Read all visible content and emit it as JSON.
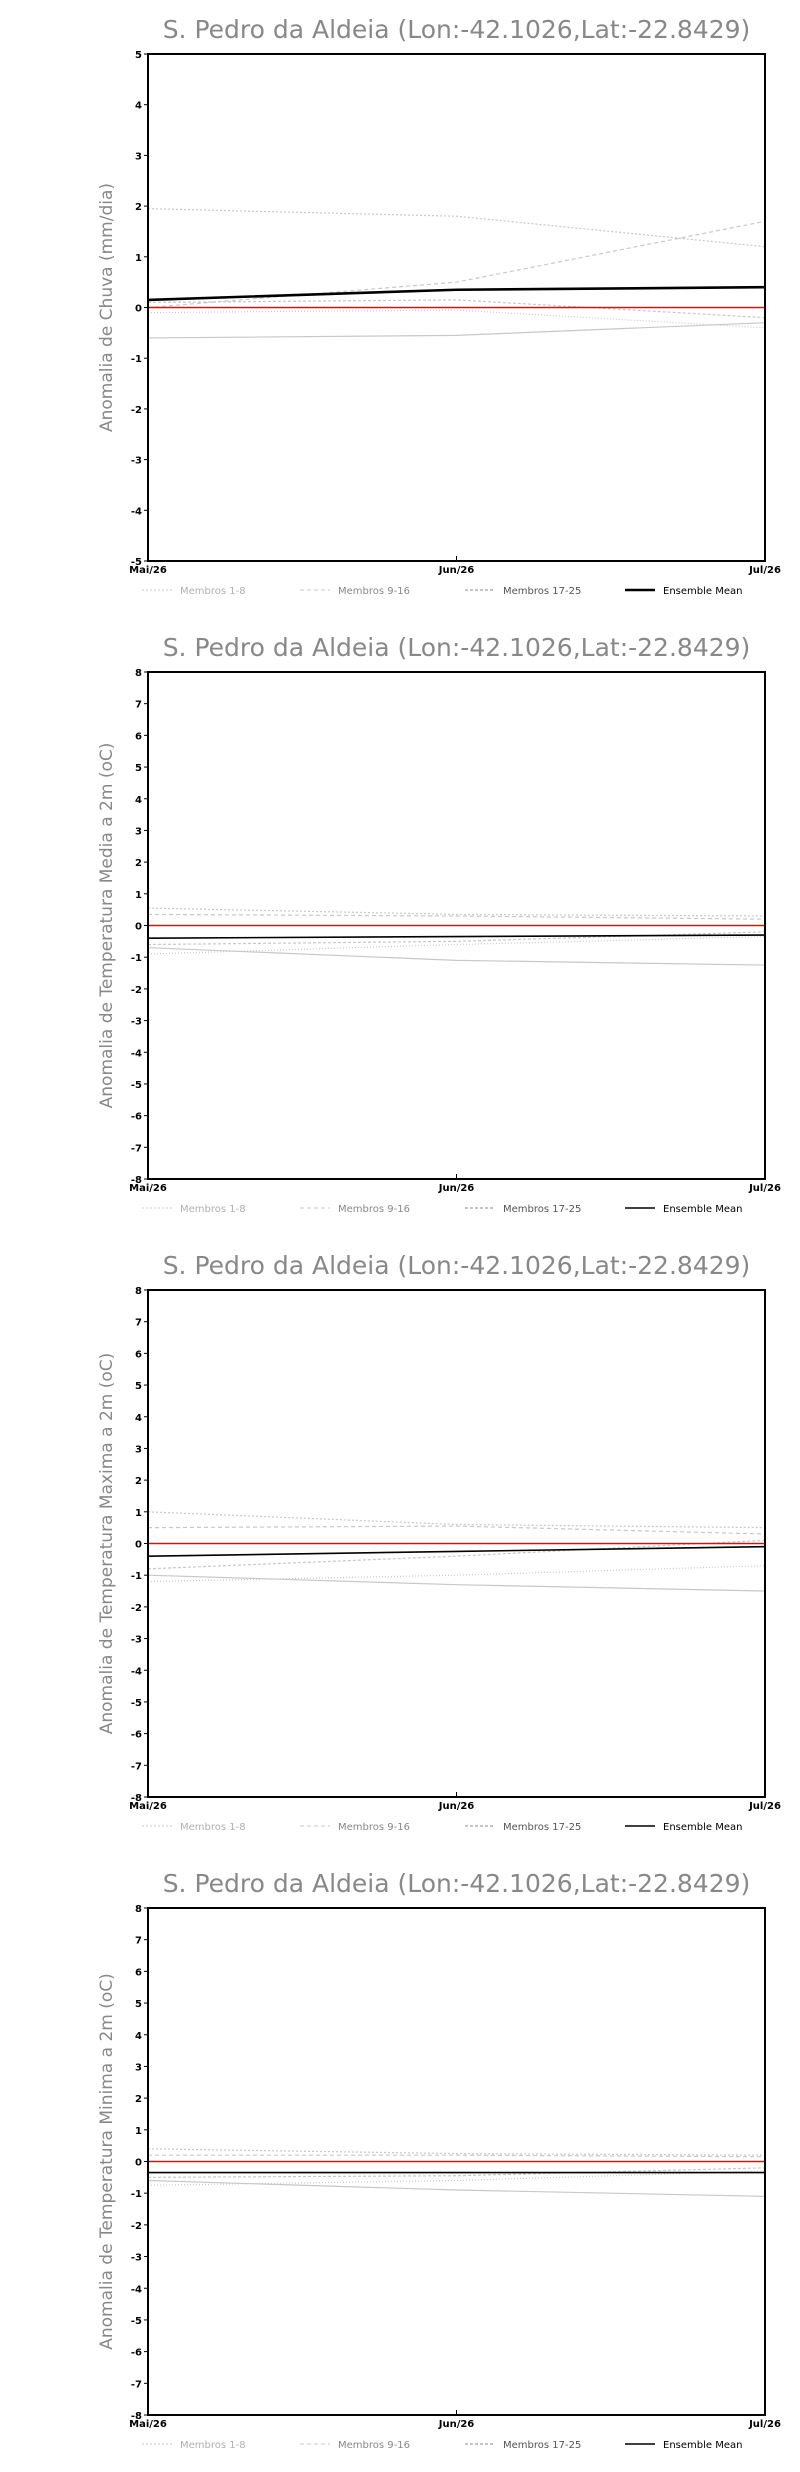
{
  "colors": {
    "members": "#c8c8c8",
    "mean": "#000000",
    "zero": "#ff0000",
    "text": "#888888"
  },
  "legend": {
    "m1": "Membros 1-8",
    "m2": "Membros 9-16",
    "m3": "Membros 17-25",
    "mean": "Ensemble Mean"
  },
  "chart_data": [
    {
      "type": "line",
      "title": "S. Pedro da Aldeia (Lon:-42.1026,Lat:-22.8429)",
      "ylabel": "Anomalia de Chuva (mm/dia)",
      "categories": [
        "Mai/26",
        "Jun/26",
        "Jul/26"
      ],
      "ylim": [
        -5,
        5
      ],
      "yticks": [
        "-5",
        "-4",
        "-3",
        "-2",
        "-1",
        "0",
        "1",
        "2",
        "3",
        "4",
        "5"
      ],
      "members": [
        [
          1.95,
          1.8,
          1.2
        ],
        [
          0.0,
          0.5,
          1.7
        ],
        [
          -0.6,
          -0.55,
          -0.3
        ],
        [
          -0.1,
          -0.05,
          -0.4
        ],
        [
          0.1,
          0.15,
          -0.2
        ]
      ],
      "mean": [
        0.15,
        0.35,
        0.4
      ],
      "zero": 0
    },
    {
      "type": "line",
      "title": "S. Pedro da Aldeia (Lon:-42.1026,Lat:-22.8429)",
      "ylabel": "Anomalia de Temperatura Media a 2m (oC)",
      "categories": [
        "Mai/26",
        "Jun/26",
        "Jul/26"
      ],
      "ylim": [
        -8,
        8
      ],
      "yticks": [
        "-8",
        "-7",
        "-6",
        "-5",
        "-4",
        "-3",
        "-2",
        "-1",
        "0",
        "1",
        "2",
        "3",
        "4",
        "5",
        "6",
        "7",
        "8"
      ],
      "members": [
        [
          0.55,
          0.35,
          0.3
        ],
        [
          0.35,
          0.3,
          0.2
        ],
        [
          -0.7,
          -1.1,
          -1.25
        ],
        [
          -0.9,
          -0.6,
          -0.35
        ],
        [
          -0.6,
          -0.5,
          -0.2
        ]
      ],
      "mean": [
        -0.4,
        -0.35,
        -0.3
      ],
      "zero": 0
    },
    {
      "type": "line",
      "title": "S. Pedro da Aldeia (Lon:-42.1026,Lat:-22.8429)",
      "ylabel": "Anomalia de Temperatura Maxima a 2m (oC)",
      "categories": [
        "Mai/26",
        "Jun/26",
        "Jul/26"
      ],
      "ylim": [
        -8,
        8
      ],
      "yticks": [
        "-8",
        "-7",
        "-6",
        "-5",
        "-4",
        "-3",
        "-2",
        "-1",
        "0",
        "1",
        "2",
        "3",
        "4",
        "5",
        "6",
        "7",
        "8"
      ],
      "members": [
        [
          1.0,
          0.6,
          0.5
        ],
        [
          0.5,
          0.55,
          0.3
        ],
        [
          -1.0,
          -1.3,
          -1.5
        ],
        [
          -1.2,
          -1.0,
          -0.7
        ],
        [
          -0.8,
          -0.4,
          0.1
        ]
      ],
      "mean": [
        -0.4,
        -0.25,
        -0.1
      ],
      "zero": 0
    },
    {
      "type": "line",
      "title": "S. Pedro da Aldeia (Lon:-42.1026,Lat:-22.8429)",
      "ylabel": "Anomalia de Temperatura Minima a 2m (oC)",
      "categories": [
        "Mai/26",
        "Jun/26",
        "Jul/26"
      ],
      "ylim": [
        -8,
        8
      ],
      "yticks": [
        "-8",
        "-7",
        "-6",
        "-5",
        "-4",
        "-3",
        "-2",
        "-1",
        "0",
        "1",
        "2",
        "3",
        "4",
        "5",
        "6",
        "7",
        "8"
      ],
      "members": [
        [
          0.4,
          0.25,
          0.2
        ],
        [
          0.2,
          0.2,
          0.15
        ],
        [
          -0.6,
          -0.9,
          -1.1
        ],
        [
          -0.75,
          -0.6,
          -0.3
        ],
        [
          -0.5,
          -0.45,
          -0.2
        ]
      ],
      "mean": [
        -0.35,
        -0.35,
        -0.35
      ],
      "zero": 0
    }
  ]
}
